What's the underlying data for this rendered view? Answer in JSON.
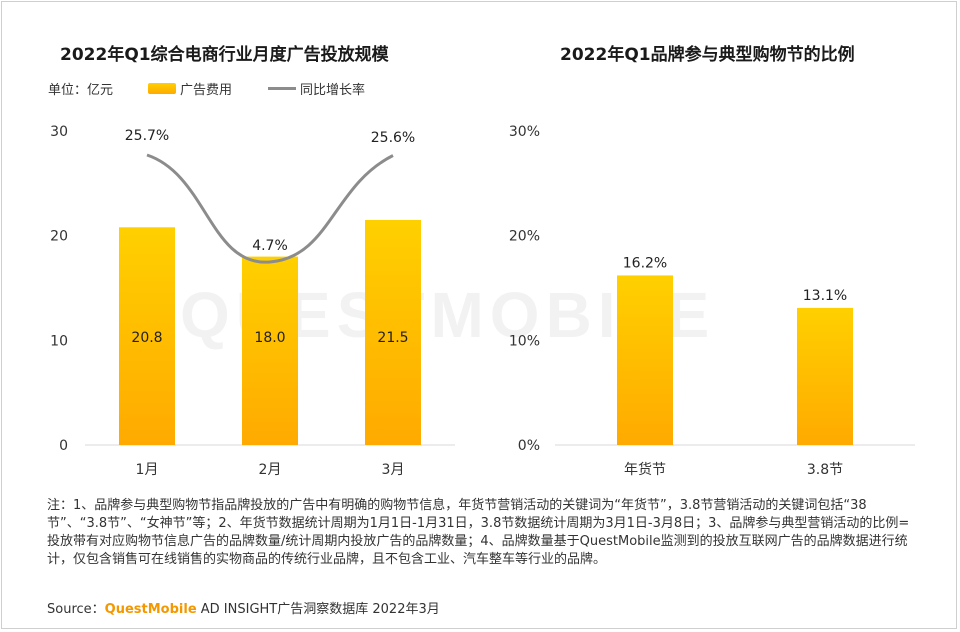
{
  "watermark": "QUESTMOBILE",
  "charts": {
    "left": {
      "title": "2022年Q1综合电商行业月度广告投放规模",
      "unit_label": "单位：亿元",
      "legend": {
        "bar_label": "广告费用",
        "line_label": "同比增长率"
      }
    },
    "right": {
      "title": "2022年Q1品牌参与典型购物节的比例"
    }
  },
  "chart_data": [
    {
      "type": "bar",
      "title": "2022年Q1综合电商行业月度广告投放规模",
      "unit": "亿元",
      "categories": [
        "1月",
        "2月",
        "3月"
      ],
      "series": [
        {
          "name": "广告费用",
          "type": "bar",
          "values": [
            20.8,
            18.0,
            21.5
          ],
          "labels": [
            "20.8",
            "18.0",
            "21.5"
          ]
        },
        {
          "name": "同比增长率",
          "type": "line",
          "values": [
            25.7,
            4.7,
            25.6
          ],
          "labels": [
            "25.7%",
            "4.7%",
            "25.6%"
          ]
        }
      ],
      "yticks": [
        "0",
        "10",
        "20",
        "30"
      ],
      "ylim": [
        0,
        30
      ],
      "grid": false,
      "legend": "top-left",
      "colors": {
        "bar_top": "#ffd000",
        "bar_bottom": "#ffaa00",
        "line": "#8c8c8c"
      }
    },
    {
      "type": "bar",
      "title": "2022年Q1品牌参与典型购物节的比例",
      "categories": [
        "年货节",
        "3.8节"
      ],
      "values": [
        16.2,
        13.1
      ],
      "labels": [
        "16.2%",
        "13.1%"
      ],
      "yticks": [
        "0%",
        "10%",
        "20%",
        "30%"
      ],
      "ylim": [
        0,
        30
      ],
      "grid": false,
      "colors": {
        "bar_top": "#ffd000",
        "bar_bottom": "#ffaa00"
      }
    }
  ],
  "notes": "注：1、品牌参与典型购物节指品牌投放的广告中有明确的购物节信息，年货节营销活动的关键词为“年货节”，3.8节营销活动的关键词包括“38节”、“3.8节”、“女神节”等；2、年货节数据统计周期为1月1日-1月31日，3.8节数据统计周期为3月1日-3月8日；3、品牌参与典型营销活动的比例=投放带有对应购物节信息广告的品牌数量/统计周期内投放广告的品牌数量；4、品牌数量基于QuestMobile监测到的投放互联网广告的品牌数据进行统计，仅包含销售可在线销售的实物商品的传统行业品牌，且不包含工业、汽车整车等行业的品牌。",
  "source": {
    "prefix": "Source：",
    "brand": "QuestMobile",
    "suffix": " AD INSIGHT广告洞察数据库 2022年3月"
  }
}
